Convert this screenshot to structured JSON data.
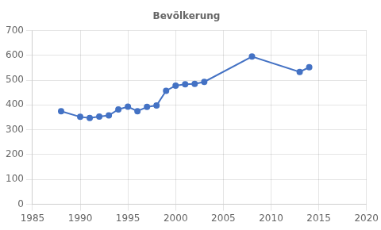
{
  "chart_data": {
    "type": "line",
    "title": "Bevölkerung",
    "x": [
      1988,
      1990,
      1991,
      1992,
      1993,
      1994,
      1995,
      1996,
      1997,
      1998,
      1999,
      2000,
      2001,
      2002,
      2003,
      2008,
      2013,
      2014
    ],
    "values": [
      375,
      352,
      348,
      353,
      358,
      382,
      393,
      375,
      392,
      398,
      457,
      478,
      483,
      485,
      493,
      595,
      533,
      552
    ],
    "color": "#4472C4",
    "marker": "circle",
    "xlim": [
      1985,
      2020
    ],
    "ylim": [
      0,
      700
    ],
    "xticks": [
      1985,
      1990,
      1995,
      2000,
      2005,
      2010,
      2015,
      2020
    ],
    "yticks": [
      0,
      100,
      200,
      300,
      400,
      500,
      600,
      700
    ],
    "grid": true
  }
}
